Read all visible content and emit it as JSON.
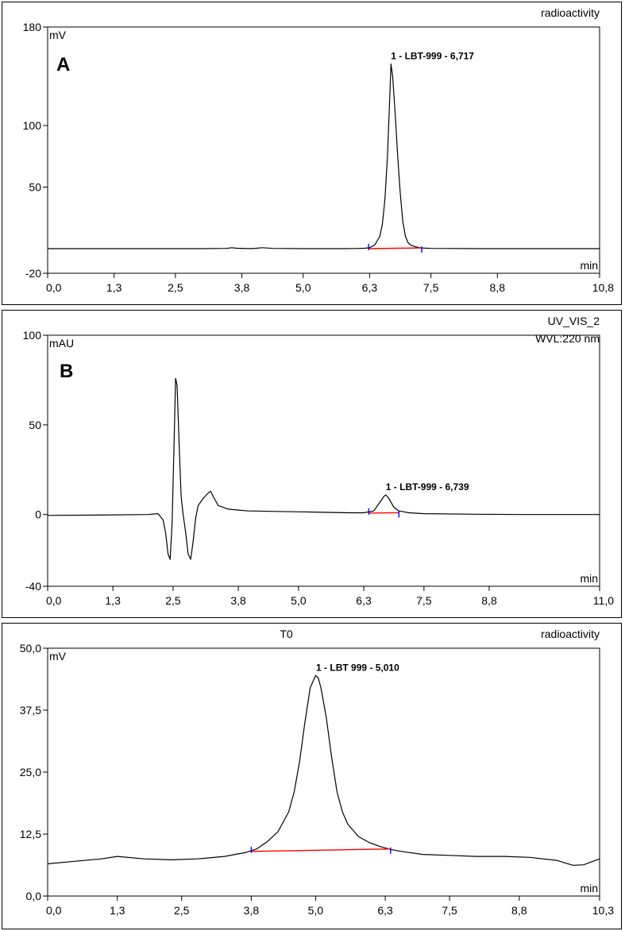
{
  "chart_data": [
    {
      "type": "line",
      "panel_letter": "A",
      "top_title": "",
      "top_right_labels": [
        "radioactivity"
      ],
      "y_unit": "mV",
      "x_unit": "min",
      "xlim": [
        0,
        10.8
      ],
      "ylim": [
        -20,
        180
      ],
      "x_ticks": [
        0,
        1.3,
        2.5,
        3.8,
        5.0,
        6.3,
        7.5,
        8.8,
        10.8
      ],
      "x_tick_labels": [
        "0,0",
        "1,3",
        "2,5",
        "3,8",
        "5,0",
        "6,3",
        "7,5",
        "8,8",
        "10,8"
      ],
      "y_ticks": [
        -20,
        50,
        100,
        180
      ],
      "y_tick_labels": [
        "-20",
        "50",
        "100",
        "180"
      ],
      "series": [
        {
          "x": [
            0,
            1.0,
            2.0,
            3.0,
            3.5,
            3.6,
            3.7,
            4.0,
            4.2,
            4.4,
            5.0,
            5.8,
            6.0,
            6.2,
            6.3,
            6.4,
            6.5,
            6.55,
            6.6,
            6.65,
            6.7,
            6.717,
            6.75,
            6.8,
            6.85,
            6.9,
            6.95,
            7.0,
            7.05,
            7.1,
            7.2,
            7.3,
            7.5,
            8.5,
            9.5,
            10.8
          ],
          "y": [
            0,
            0,
            0,
            0,
            0.2,
            0.8,
            0.3,
            0,
            0.8,
            0.2,
            0,
            0,
            0.1,
            0.3,
            0.8,
            3,
            10,
            20,
            40,
            75,
            130,
            150,
            140,
            110,
            75,
            45,
            22,
            10,
            5,
            3,
            1.5,
            0.6,
            0.2,
            0,
            0,
            0
          ]
        }
      ],
      "peak": {
        "label": "1 - LBT-999 - 6,717",
        "x": 6.717,
        "y": 150
      },
      "integration_baseline": {
        "x_start": 6.28,
        "x_end": 7.32,
        "y_start": 0,
        "y_end": 0.6
      },
      "grid": false
    },
    {
      "type": "line",
      "panel_letter": "B",
      "top_title": "",
      "top_right_labels": [
        "UV_VIS_2",
        "WVL:220 nm"
      ],
      "y_unit": "mAU",
      "x_unit": "min",
      "xlim": [
        0,
        11.0
      ],
      "ylim": [
        -40,
        100
      ],
      "x_ticks": [
        0,
        1.3,
        2.5,
        3.8,
        5.0,
        6.3,
        7.5,
        8.8,
        11.0
      ],
      "x_tick_labels": [
        "0,0",
        "1,3",
        "2,5",
        "3,8",
        "5,0",
        "6,3",
        "7,5",
        "8,8",
        "11,0"
      ],
      "y_ticks": [
        -40,
        0,
        50,
        100
      ],
      "y_tick_labels": [
        "-40",
        "0",
        "50",
        "100"
      ],
      "series": [
        {
          "x": [
            0,
            1.0,
            2.0,
            2.2,
            2.3,
            2.35,
            2.4,
            2.44,
            2.48,
            2.52,
            2.55,
            2.58,
            2.62,
            2.66,
            2.7,
            2.75,
            2.8,
            2.85,
            2.9,
            2.95,
            3.0,
            3.1,
            3.2,
            3.25,
            3.3,
            3.4,
            3.6,
            3.8,
            4.0,
            5.0,
            6.0,
            6.3,
            6.5,
            6.6,
            6.7,
            6.739,
            6.8,
            6.9,
            7.0,
            7.1,
            7.2,
            7.5,
            8.5,
            9.5,
            11.0
          ],
          "y": [
            -0.5,
            -0.3,
            0,
            0.5,
            -3,
            -10,
            -22,
            -25,
            -5,
            40,
            76,
            72,
            40,
            10,
            0,
            -10,
            -22,
            -25,
            -15,
            -2,
            5,
            9,
            12,
            13,
            10,
            5,
            3,
            2.5,
            2,
            1.5,
            1,
            1,
            2,
            6,
            10,
            11,
            9,
            4,
            2,
            1.5,
            1,
            0.5,
            0.2,
            0,
            0
          ]
        }
      ],
      "peak": {
        "label": "1 - LBT-999 - 6,739",
        "x": 6.739,
        "y": 11
      },
      "integration_baseline": {
        "x_start": 6.4,
        "x_end": 7.0,
        "y_start": 0.8,
        "y_end": 1.0
      },
      "grid": false
    },
    {
      "type": "line",
      "panel_letter": "",
      "top_title": "T0",
      "top_right_labels": [
        "radioactivity"
      ],
      "y_unit": "mV",
      "x_unit": "min",
      "xlim": [
        0,
        10.3
      ],
      "ylim": [
        0,
        50
      ],
      "x_ticks": [
        0,
        1.3,
        2.5,
        3.8,
        5.0,
        6.3,
        7.5,
        8.8,
        10.3
      ],
      "x_tick_labels": [
        "0,0",
        "1,3",
        "2,5",
        "3,8",
        "5,0",
        "6,3",
        "7,5",
        "8,8",
        "10,3"
      ],
      "y_ticks": [
        0,
        12.5,
        25,
        37.5,
        50
      ],
      "y_tick_labels": [
        "0,0",
        "12,5",
        "25,0",
        "37,5",
        "50,0"
      ],
      "series": [
        {
          "x": [
            0,
            0.5,
            1.0,
            1.3,
            1.8,
            2.3,
            2.8,
            3.3,
            3.7,
            3.9,
            4.1,
            4.3,
            4.5,
            4.6,
            4.7,
            4.8,
            4.9,
            5.0,
            5.05,
            5.1,
            5.2,
            5.3,
            5.4,
            5.5,
            5.6,
            5.8,
            6.0,
            6.2,
            6.4,
            6.6,
            7.0,
            7.5,
            8.0,
            8.5,
            9.0,
            9.5,
            9.8,
            10.0,
            10.3
          ],
          "y": [
            6.5,
            7,
            7.5,
            8,
            7.5,
            7.3,
            7.5,
            8,
            8.8,
            9.5,
            11,
            13,
            17,
            21,
            27,
            35,
            42,
            44.5,
            44,
            42,
            36,
            28,
            21,
            17,
            14.5,
            12,
            10.8,
            10,
            9.4,
            9,
            8.4,
            8.2,
            8,
            8,
            7.8,
            7.2,
            6.2,
            6.3,
            7.5
          ]
        }
      ],
      "peak": {
        "label": "1 - LBT 999 - 5,010",
        "x": 5.01,
        "y": 44.5
      },
      "integration_baseline": {
        "x_start": 3.8,
        "x_end": 6.4,
        "y_start": 9.0,
        "y_end": 9.5
      },
      "grid": false
    }
  ]
}
